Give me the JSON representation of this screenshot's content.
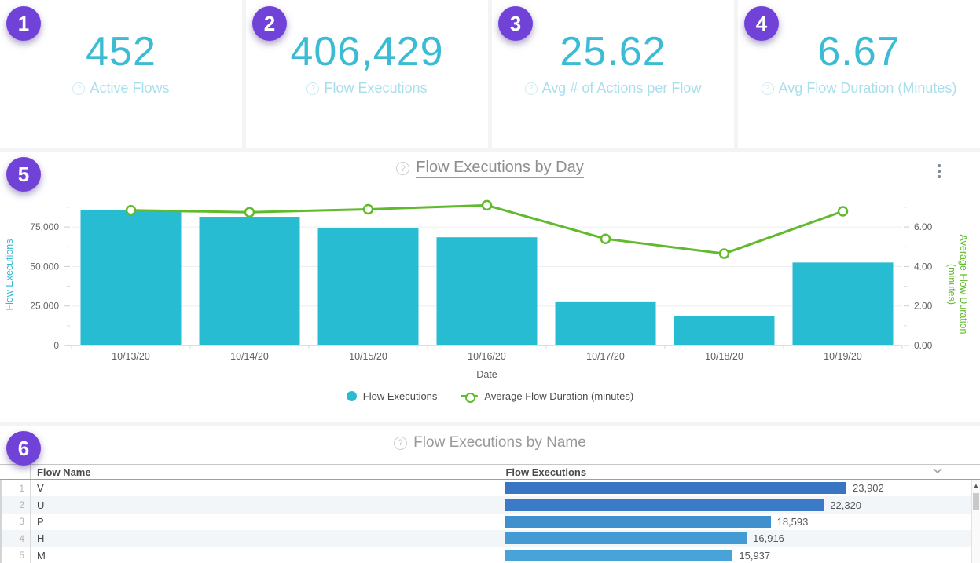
{
  "page": {
    "background": "#f3f4f5",
    "accent_purple": "#7142d8",
    "accent_teal": "#3bbcd4"
  },
  "kpi_cards": [
    {
      "badge": "1",
      "value": "452",
      "label": "Active Flows"
    },
    {
      "badge": "2",
      "value": "406,429",
      "label": "Flow Executions"
    },
    {
      "badge": "3",
      "value": "25.62",
      "label": "Avg # of Actions per Flow"
    },
    {
      "badge": "4",
      "value": "6.67",
      "label": "Avg Flow Duration (Minutes)"
    }
  ],
  "chart_section": {
    "badge": "5",
    "title": "Flow Executions by Day",
    "legend": [
      {
        "label": "Flow Executions",
        "marker": "filled-circle",
        "color": "#28bcd3"
      },
      {
        "label": "Average Flow Duration (minutes)",
        "marker": "line-open-circle",
        "color": "#61ba2d"
      }
    ],
    "chart_data": {
      "type": "bar",
      "subtype": "combo bar+line, dual y-axis",
      "categories": [
        "10/13/20",
        "10/14/20",
        "10/15/20",
        "10/16/20",
        "10/17/20",
        "10/18/20",
        "10/19/20"
      ],
      "series": [
        {
          "name": "Flow Executions",
          "type": "bar",
          "axis": "left",
          "color": "#28bcd3",
          "values": [
            86000,
            81500,
            74500,
            68500,
            27900,
            18400,
            52500
          ]
        },
        {
          "name": "Average Flow Duration (minutes)",
          "type": "line",
          "axis": "right",
          "color": "#61ba2d",
          "values": [
            6.85,
            6.75,
            6.9,
            7.1,
            5.4,
            4.65,
            6.8
          ]
        }
      ],
      "xlabel": "Date",
      "grid": true,
      "legend_position": "bottom",
      "left_axis": {
        "label": "Flow Executions",
        "color": "#2fb9d0",
        "ticks": [
          0,
          25000,
          50000,
          75000
        ],
        "tick_labels": [
          "0",
          "25,000",
          "50,000",
          "75,000"
        ],
        "range": [
          0,
          92000
        ]
      },
      "right_axis": {
        "label": "Average Flow Duration (minutes)",
        "label_lines": [
          "Average Flow Duration",
          "(minutes)"
        ],
        "color": "#61ba2d",
        "ticks": [
          0,
          2,
          4,
          6
        ],
        "tick_labels": [
          "0.00",
          "2.00",
          "4.00",
          "6.00"
        ],
        "range": [
          0,
          7.36
        ]
      }
    }
  },
  "table_section": {
    "badge": "6",
    "title": "Flow Executions by Name",
    "columns": {
      "name": "Flow Name",
      "executions": "Flow Executions"
    },
    "rows": [
      {
        "num": "1",
        "name": "V",
        "value": 23902,
        "value_label": "23,902",
        "bar_color": "#3a75c4"
      },
      {
        "num": "2",
        "name": "U",
        "value": 22320,
        "value_label": "22,320",
        "bar_color": "#3b7ac6"
      },
      {
        "num": "3",
        "name": "P",
        "value": 18593,
        "value_label": "18,593",
        "bar_color": "#3f90cc"
      },
      {
        "num": "4",
        "name": "H",
        "value": 16916,
        "value_label": "16,916",
        "bar_color": "#449bd3"
      },
      {
        "num": "5",
        "name": "M",
        "value": 15937,
        "value_label": "15,937",
        "bar_color": "#47a3d8"
      }
    ]
  }
}
